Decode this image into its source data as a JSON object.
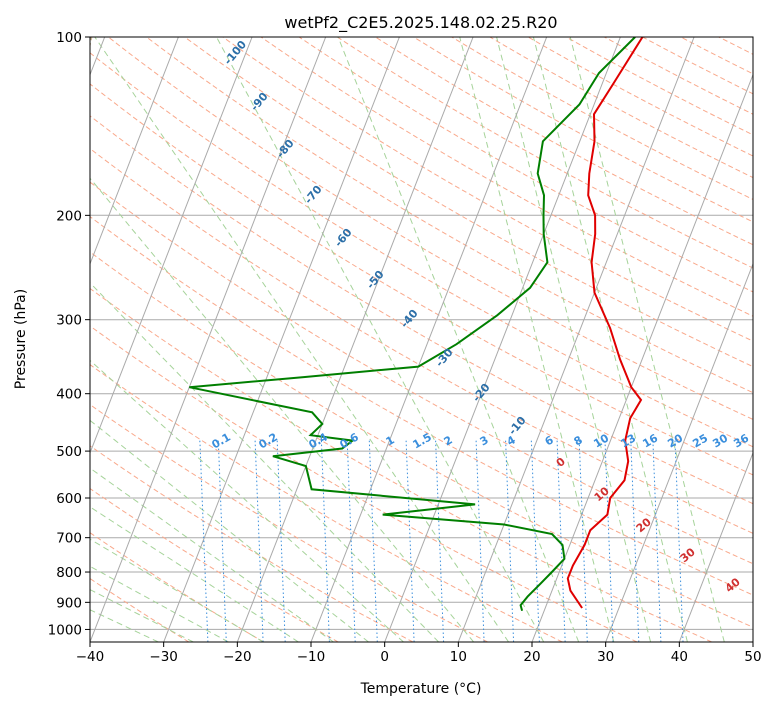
{
  "chart_data": {
    "type": "line",
    "title": "wetPf2_C2E5.2025.148.02.25.R20",
    "xlabel": "Temperature (°C)",
    "ylabel": "Pressure (hPa)",
    "xlim": [
      -40,
      50
    ],
    "ylim": [
      1050,
      100
    ],
    "y_scale": "log",
    "x_ticks": [
      -40,
      -30,
      -20,
      -10,
      0,
      10,
      20,
      30,
      40,
      50
    ],
    "y_ticks": [
      100,
      200,
      300,
      400,
      500,
      600,
      700,
      800,
      900,
      1000
    ],
    "grid": true,
    "series": [
      {
        "color": "#e00000",
        "points": [
          [
            3,
            100
          ],
          [
            1.5,
            120
          ],
          [
            0.5,
            135
          ],
          [
            2,
            150
          ],
          [
            3,
            170
          ],
          [
            4,
            185
          ],
          [
            6,
            200
          ],
          [
            7,
            215
          ],
          [
            8,
            240
          ],
          [
            10,
            270
          ],
          [
            14,
            310
          ],
          [
            17,
            350
          ],
          [
            20,
            390
          ],
          [
            22,
            410
          ],
          [
            21.5,
            440
          ],
          [
            22,
            480
          ],
          [
            23.5,
            520
          ],
          [
            24,
            560
          ],
          [
            23,
            600
          ],
          [
            23.5,
            640
          ],
          [
            22,
            680
          ],
          [
            22,
            720
          ],
          [
            21.5,
            780
          ],
          [
            21.5,
            820
          ],
          [
            22.5,
            860
          ],
          [
            25,
            920
          ]
        ]
      },
      {
        "color": "#007f00",
        "points": [
          [
            2,
            100
          ],
          [
            -1,
            115
          ],
          [
            -2,
            130
          ],
          [
            -5,
            150
          ],
          [
            -4,
            170
          ],
          [
            -2,
            185
          ],
          [
            -1,
            200
          ],
          [
            0,
            215
          ],
          [
            2,
            240
          ],
          [
            1,
            265
          ],
          [
            -2,
            295
          ],
          [
            -6,
            330
          ],
          [
            -10,
            360
          ],
          [
            -25,
            375
          ],
          [
            -40,
            390
          ],
          [
            -22,
            430
          ],
          [
            -20,
            450
          ],
          [
            -21,
            470
          ],
          [
            -15,
            480
          ],
          [
            -16,
            495
          ],
          [
            -25,
            510
          ],
          [
            -20,
            530
          ],
          [
            -18,
            580
          ],
          [
            5,
            615
          ],
          [
            -7,
            640
          ],
          [
            10,
            665
          ],
          [
            17,
            690
          ],
          [
            19,
            720
          ],
          [
            20,
            760
          ],
          [
            19,
            800
          ],
          [
            18,
            840
          ],
          [
            17,
            880
          ],
          [
            16.5,
            910
          ],
          [
            17,
            930
          ]
        ]
      }
    ],
    "annotations": {
      "dry_adiabat_labels": [
        "-100",
        "-90",
        "-80",
        "-70",
        "-60",
        "-50",
        "-40",
        "-30",
        "-20",
        "-10"
      ],
      "mixing_ratio_labels": [
        "0.1",
        "0.2",
        "0.4",
        "0.6",
        "1",
        "1.5",
        "2",
        "3",
        "4",
        "6",
        "8",
        "10",
        "13",
        "16",
        "20",
        "25",
        "30",
        "36"
      ],
      "moist_adiabat_labels": [
        "0",
        "10",
        "20",
        "30",
        "40"
      ]
    },
    "colors": {
      "isotherm": "#aaaaaa",
      "isobar": "#aaaaaa",
      "dry_adiabat": "#f9a98c",
      "moist_adiabat": "#a6d39a",
      "mixing_ratio": "#3a8edc",
      "dry_label": "#2c6fa8",
      "mixing_label": "#3a8edc",
      "moist_label": "#d03030",
      "ice_curve": "#cfb89a"
    }
  }
}
